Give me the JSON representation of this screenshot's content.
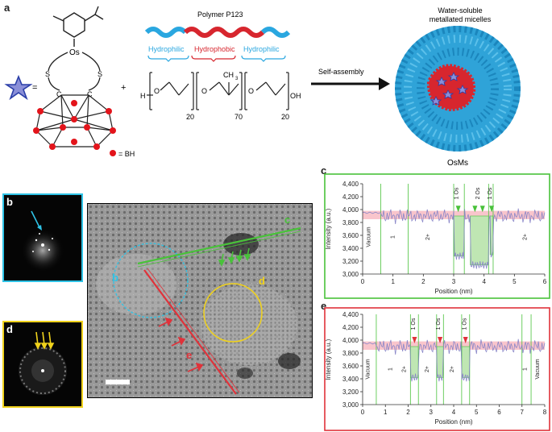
{
  "panels": {
    "a": "a",
    "b": "b",
    "c": "c",
    "d": "d",
    "e": "e"
  },
  "scheme": {
    "os_complex": {
      "os_label": "Os",
      "s_label": "S",
      "c_label": "C",
      "equals": "=",
      "plus": "+",
      "bh_legend": "= BH"
    },
    "polymer": {
      "title": "Polymer P123",
      "hydrophilic_left": "Hydrophilic",
      "hydrophobic": "Hydrophobic",
      "hydrophilic_right": "Hydrophilic",
      "h": "H",
      "o": "O",
      "ch3": "CH",
      "ch3_sub": "3",
      "oh": "OH",
      "n1": "20",
      "n2": "70",
      "n3": "20",
      "colors": {
        "hydrophilic": "#2aa7e0",
        "hydrophobic": "#d7262e"
      }
    },
    "arrow_label": "Self-assembly",
    "micelle": {
      "title_line1": "Water-soluble",
      "title_line2": "metallated micelles",
      "caption": "OsMs"
    }
  },
  "micrograph": {
    "label_b": "b",
    "label_c": "c",
    "label_d": "d",
    "label_e": "e"
  },
  "charts": {
    "c": {
      "border_color": "#49c23a",
      "ylabel": "Intensity (a.u.)",
      "xlabel": "Position (nm)",
      "yticks": [
        "4,400",
        "4,200",
        "4,000",
        "3,800",
        "3,600",
        "3,400",
        "3,200",
        "3,000"
      ],
      "xticks": [
        "0",
        "1",
        "2",
        "3",
        "4",
        "5",
        "6"
      ],
      "region_labels": [
        "Vacuum",
        "1",
        "2+",
        "1 Os",
        "2 Os",
        "1 Os",
        "2+"
      ]
    },
    "e": {
      "border_color": "#e0323a",
      "ylabel": "Intensity (a.u.)",
      "xlabel": "Position (nm)",
      "yticks": [
        "4,400",
        "4,200",
        "4,000",
        "3,800",
        "3,600",
        "3,400",
        "3,200",
        "3,000"
      ],
      "xticks": [
        "0",
        "1",
        "2",
        "3",
        "4",
        "5",
        "6",
        "7",
        "8"
      ],
      "region_labels": [
        "Vacuum",
        "1",
        "2+",
        "1 Os",
        "2+",
        "1 Os",
        "2+",
        "1 Os",
        "1",
        "Vacuum"
      ]
    }
  }
}
